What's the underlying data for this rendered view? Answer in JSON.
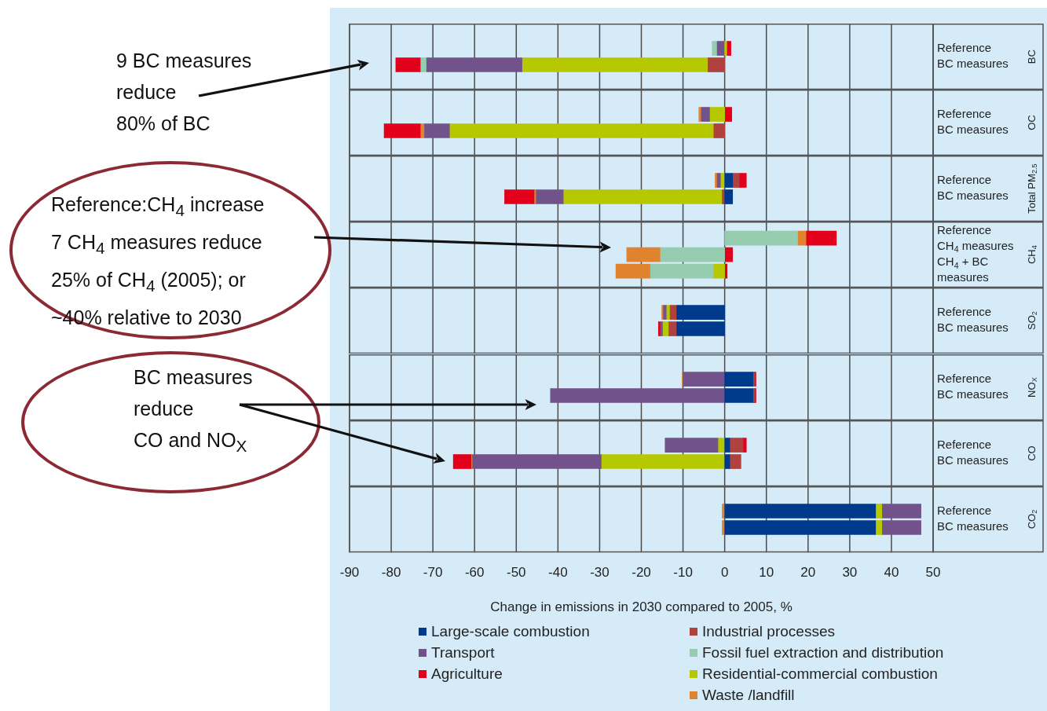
{
  "chart_data": [
    {
      "type": "bar",
      "orientation": "horizontal",
      "stacked": true,
      "categories": [
        "Reference",
        "BC measures"
      ],
      "y2label": "BC",
      "xlim": [
        -90,
        50
      ],
      "xticks": [
        -90,
        -80,
        -70,
        -60,
        -50,
        -40,
        -30,
        -20,
        -10,
        0,
        10,
        20,
        30,
        40,
        50
      ],
      "grid": "x",
      "tick_labels": "y",
      "annotations": [
        "9 BC measures\nreduce\n80% of BC"
      ],
      "series": [
        {
          "color": "#003a8c",
          "values": [
            null,
            null
          ]
        },
        {
          "color": "#b0413e",
          "values": [
            null,
            -4
          ]
        },
        {
          "color": "#b5c800",
          "values": [
            0.5,
            -44.5
          ]
        },
        {
          "color": "#72528a",
          "values": [
            -1.8,
            -23
          ]
        },
        {
          "color": "#96ccb0",
          "values": [
            -1.2,
            -1.4
          ]
        },
        {
          "color": "#e0832e",
          "values": [
            null,
            null
          ]
        },
        {
          "color": "#e3001b",
          "values": [
            1.0,
            -6
          ]
        }
      ]
    },
    {
      "type": "bar",
      "orientation": "horizontal",
      "stacked": true,
      "categories": [
        "Reference",
        "BC measures"
      ],
      "y2label": "OC",
      "xlim": [
        -90,
        50
      ],
      "xticks": [
        -90,
        -80,
        -70,
        -60,
        -50,
        -40,
        -30,
        -20,
        -10,
        0,
        10,
        20,
        30,
        40,
        50
      ],
      "grid": "x",
      "tick_labels": "y",
      "series": [
        {
          "color": "#003a8c",
          "values": [
            null,
            null
          ]
        },
        {
          "color": "#b0413e",
          "values": [
            null,
            -2.6
          ]
        },
        {
          "color": "#b5c800",
          "values": [
            -3.5,
            -63.3
          ]
        },
        {
          "color": "#72528a",
          "values": [
            -2.1,
            -6.1
          ]
        },
        {
          "color": "#96ccb0",
          "values": [
            null,
            null
          ]
        },
        {
          "color": "#e0832e",
          "values": [
            -0.6,
            -0.9
          ]
        },
        {
          "color": "#e3001b",
          "values": [
            1.7,
            -8.8
          ]
        }
      ]
    },
    {
      "type": "bar",
      "orientation": "horizontal",
      "stacked": true,
      "categories": [
        "Reference",
        "BC measures"
      ],
      "y2label": "Total PM$_{2.5}$",
      "xlim": [
        -90,
        50
      ],
      "xticks": [
        -90,
        -80,
        -70,
        -60,
        -50,
        -40,
        -30,
        -20,
        -10,
        0,
        10,
        20,
        30,
        40,
        50
      ],
      "grid": "x",
      "tick_labels": "y",
      "series": [
        {
          "color": "#003a8c",
          "values": [
            1.9,
            1.9
          ]
        },
        {
          "color": "#b0413e",
          "values": [
            1.6,
            -0.6
          ]
        },
        {
          "color": "#b5c800",
          "values": [
            -0.9,
            -38
          ]
        },
        {
          "color": "#72528a",
          "values": [
            -0.9,
            -6.6
          ]
        },
        {
          "color": "#96ccb0",
          "values": [
            null,
            null
          ]
        },
        {
          "color": "#e0832e",
          "values": [
            -0.5,
            -0.4
          ]
        },
        {
          "color": "#e3001b",
          "values": [
            1.7,
            -7.2
          ]
        }
      ]
    },
    {
      "type": "bar",
      "orientation": "horizontal",
      "stacked": true,
      "categories": [
        "Reference",
        "CH$_{4}$ measures",
        "CH$_{4}$ + BC measures"
      ],
      "y2label": "CH$_{4}$",
      "xlim": [
        -90,
        50
      ],
      "xticks": [
        -90,
        -80,
        -70,
        -60,
        -50,
        -40,
        -30,
        -20,
        -10,
        0,
        10,
        20,
        30,
        40,
        50
      ],
      "grid": "x",
      "tick_labels": "y",
      "annotations": [
        "Reference:CH$_{4}$ increase\n7 CH$_{4}$ measures reduce\n25% of CH$_{4}$ (2005); or\n~40% relative to 2030"
      ],
      "series": [
        {
          "color": "#003a8c",
          "values": [
            null,
            null,
            null
          ]
        },
        {
          "color": "#b0413e",
          "values": [
            null,
            null,
            null
          ]
        },
        {
          "color": "#b5c800",
          "values": [
            null,
            null,
            -2.6
          ]
        },
        {
          "color": "#72528a",
          "values": [
            null,
            null,
            null
          ]
        },
        {
          "color": "#96ccb0",
          "values": [
            17.5,
            -15.4,
            -15.2
          ]
        },
        {
          "color": "#e0832e",
          "values": [
            2,
            -8.1,
            -8.3
          ]
        },
        {
          "color": "#e3001b",
          "values": [
            7.3,
            1.9,
            0.6
          ]
        }
      ]
    },
    {
      "type": "bar",
      "orientation": "horizontal",
      "stacked": true,
      "categories": [
        "Reference",
        "BC measures"
      ],
      "y2label": "SO$_{2}$",
      "xlim": [
        -90,
        50
      ],
      "xticks": [
        -90,
        -80,
        -70,
        -60,
        -50,
        -40,
        -30,
        -20,
        -10,
        0,
        10,
        20,
        30,
        40,
        50
      ],
      "grid": "x",
      "tick_labels": "y",
      "series": [
        {
          "color": "#003a8c",
          "values": [
            -11.5,
            -11.5
          ]
        },
        {
          "color": "#b0413e",
          "values": [
            -1.6,
            -1.9
          ]
        },
        {
          "color": "#b5c800",
          "values": [
            -0.8,
            -1.4
          ]
        },
        {
          "color": "#72528a",
          "values": [
            -0.8,
            -0.6
          ]
        },
        {
          "color": "#96ccb0",
          "values": [
            null,
            null
          ]
        },
        {
          "color": "#e0832e",
          "values": [
            -0.4,
            null
          ]
        },
        {
          "color": "#e3001b",
          "values": [
            null,
            -0.5
          ]
        }
      ]
    },
    {
      "type": "bar",
      "orientation": "horizontal",
      "stacked": true,
      "categories": [
        "Reference",
        "BC measures"
      ],
      "y2label": "NO$_{X}$",
      "xlim": [
        -90,
        50
      ],
      "xticks": [
        -90,
        -80,
        -70,
        -60,
        -50,
        -40,
        -30,
        -20,
        -10,
        0,
        10,
        20,
        30,
        40,
        50
      ],
      "grid": "x",
      "tick_labels": "y",
      "annotations": [
        "BC measures\nreduce\nCO and NO$_{X}$"
      ],
      "series": [
        {
          "color": "#003a8c",
          "values": [
            6.8,
            6.8
          ]
        },
        {
          "color": "#b0413e",
          "values": [
            0.4,
            0.4
          ]
        },
        {
          "color": "#b5c800",
          "values": [
            null,
            null
          ]
        },
        {
          "color": "#72528a",
          "values": [
            -10,
            -41.8
          ]
        },
        {
          "color": "#96ccb0",
          "values": [
            null,
            null
          ]
        },
        {
          "color": "#e0832e",
          "values": [
            -0.2,
            null
          ]
        },
        {
          "color": "#e3001b",
          "values": [
            0.3,
            0.3
          ]
        }
      ]
    },
    {
      "type": "bar",
      "orientation": "horizontal",
      "stacked": true,
      "categories": [
        "Reference",
        "BC measures"
      ],
      "y2label": "CO",
      "xlim": [
        -90,
        50
      ],
      "xticks": [
        -90,
        -80,
        -70,
        -60,
        -50,
        -40,
        -30,
        -20,
        -10,
        0,
        10,
        20,
        30,
        40,
        50
      ],
      "grid": "x",
      "tick_labels": "y",
      "series": [
        {
          "color": "#003a8c",
          "values": [
            1.2,
            1.2
          ]
        },
        {
          "color": "#b0413e",
          "values": [
            3.2,
            2.7
          ]
        },
        {
          "color": "#b5c800",
          "values": [
            -1.5,
            -29.5
          ]
        },
        {
          "color": "#72528a",
          "values": [
            -12.8,
            -31
          ]
        },
        {
          "color": "#96ccb0",
          "values": [
            null,
            null
          ]
        },
        {
          "color": "#e0832e",
          "values": [
            null,
            -0.2
          ]
        },
        {
          "color": "#e3001b",
          "values": [
            0.8,
            -4.4
          ]
        }
      ]
    },
    {
      "type": "bar",
      "orientation": "horizontal",
      "stacked": true,
      "categories": [
        "Reference",
        "BC measures"
      ],
      "y2label": "CO$_{2}$",
      "xlabel": "Change in emissions in 2030 compared to 2005, %",
      "xlim": [
        -90,
        50
      ],
      "xticks": [
        -90,
        -80,
        -70,
        -60,
        -50,
        -40,
        -30,
        -20,
        -10,
        0,
        10,
        20,
        30,
        40,
        50
      ],
      "grid": "x",
      "legend": "bottom",
      "series": [
        {
          "name": "Large-scale combustion",
          "color": "#003a8c",
          "values": [
            36.2,
            36.2
          ]
        },
        {
          "name": "Industrial processes",
          "color": "#b0413e",
          "values": [
            null,
            null
          ]
        },
        {
          "name": "Residential-commercial combustion",
          "color": "#b5c800",
          "values": [
            1.5,
            1.5
          ]
        },
        {
          "name": "Transport",
          "color": "#72528a",
          "values": [
            9.4,
            9.4
          ]
        },
        {
          "name": "Fossil fuel extraction and distribution",
          "color": "#96ccb0",
          "values": [
            null,
            null
          ]
        },
        {
          "name": "Waste /landfill",
          "color": "#e0832e",
          "values": [
            -0.6,
            -0.6
          ]
        },
        {
          "name": "Agriculture",
          "color": "#e3001b",
          "values": [
            null,
            null
          ]
        }
      ]
    }
  ]
}
